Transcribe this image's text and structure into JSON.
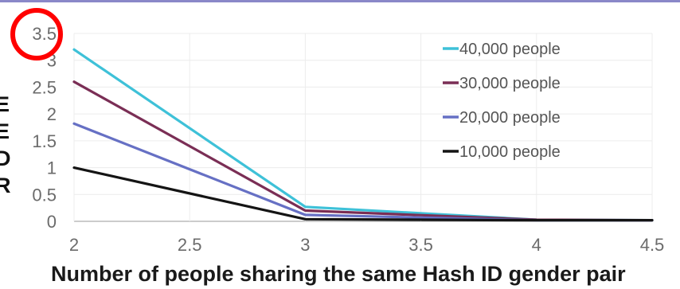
{
  "page": {
    "y_label_fragment": [
      "E",
      "E",
      "D",
      "R"
    ]
  },
  "chart_data": {
    "type": "line",
    "title": "",
    "xlabel": "Number of people sharing the same Hash ID gender pair",
    "ylabel": "",
    "xlim": [
      2,
      4.5
    ],
    "ylim": [
      0,
      3.5
    ],
    "x_ticks": [
      "2",
      "2.5",
      "3",
      "3.5",
      "4",
      "4.5"
    ],
    "y_ticks": [
      "0",
      "0.5",
      "1",
      "1.5",
      "2",
      "2.5",
      "3",
      "3.5"
    ],
    "grid": true,
    "legend_position": "top-right",
    "x": [
      2,
      3,
      4,
      4.5
    ],
    "series": [
      {
        "name": "40,000 people",
        "color": "#3ec1d8",
        "values": [
          3.2,
          0.27,
          0.03,
          0.02
        ]
      },
      {
        "name": "30,000 people",
        "color": "#7a2e55",
        "values": [
          2.6,
          0.2,
          0.03,
          0.02
        ]
      },
      {
        "name": "20,000 people",
        "color": "#6670c4",
        "values": [
          1.82,
          0.12,
          0.02,
          0.02
        ]
      },
      {
        "name": "10,000 people",
        "color": "#141414",
        "values": [
          1.0,
          0.04,
          0.02,
          0.02
        ]
      }
    ],
    "annotations": [
      {
        "type": "circle",
        "target": "y-tick-3.5",
        "color": "#ff0000"
      }
    ]
  }
}
